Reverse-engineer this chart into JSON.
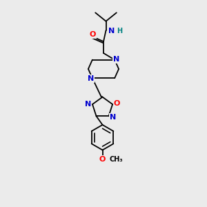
{
  "bg_color": "#ebebeb",
  "atom_colors": {
    "N": "#0000cd",
    "O": "#ff0000",
    "C": "#000000",
    "H": "#008080"
  },
  "font_size_atom": 8.0,
  "font_size_H": 7.0,
  "line_width": 1.3,
  "line_color": "#000000",
  "xlim": [
    0,
    10
  ],
  "ylim": [
    0,
    10
  ]
}
